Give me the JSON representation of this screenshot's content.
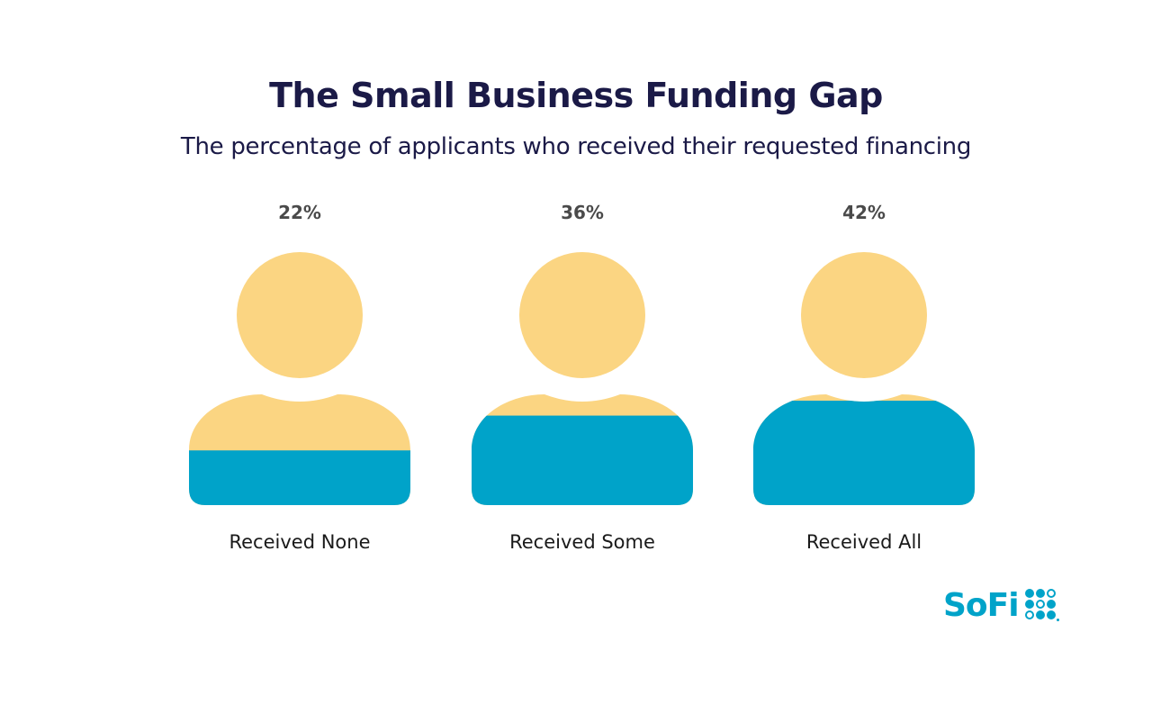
{
  "title": "The Small Business Funding Gap",
  "subtitle": "The percentage of applicants who received their requested financing",
  "brand": {
    "logo_text": "SoFi"
  },
  "colors": {
    "title": "#1b1a47",
    "head_fill": "#fbd582",
    "body_fill": "#fbd582",
    "level_fill": "#00a3c9",
    "logo": "#00a3c9"
  },
  "chart_data": {
    "type": "bar",
    "title": "The Small Business Funding Gap",
    "subtitle": "The percentage of applicants who received their requested financing",
    "categories": [
      "Received None",
      "Received Some",
      "Received All"
    ],
    "values": [
      22,
      36,
      42
    ],
    "value_labels": [
      "22%",
      "36%",
      "42%"
    ],
    "unit": "%",
    "ylim": [
      0,
      100
    ],
    "grid": false
  }
}
